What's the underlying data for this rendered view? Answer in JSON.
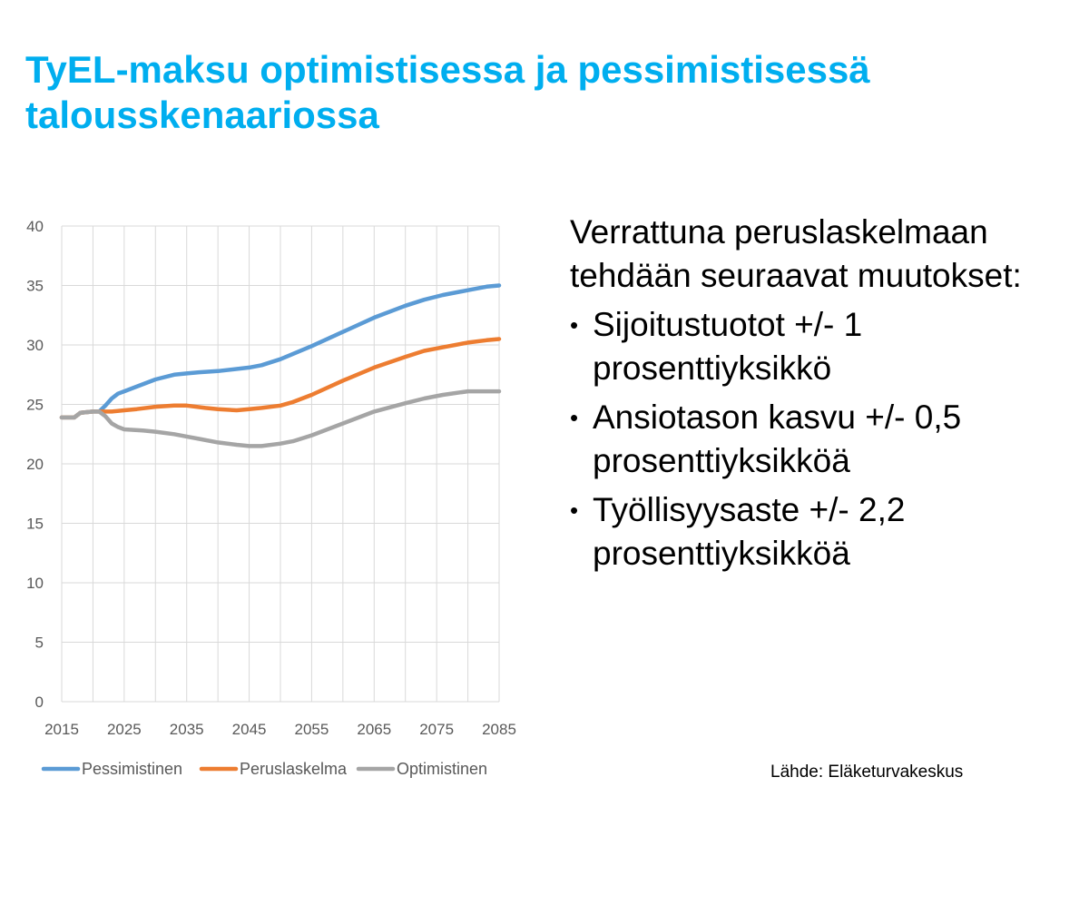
{
  "slide": {
    "title": "TyEL-maksu optimistisessa ja pessimistisessä talousskenaariossa",
    "intro": "Verrattuna peruslaskelmaan tehdään seuraavat muutokset:",
    "bullets": [
      "Sijoitustuotot +/- 1 prosenttiyksikkö",
      "Ansiotason kasvu +/- 0,5 prosenttiyksikköä",
      "Työllisyysaste +/- 2,2 prosenttiyksikköä"
    ],
    "source": "Lähde: Eläketurvakeskus"
  },
  "chart_data": {
    "type": "line",
    "title": "",
    "xlabel": "",
    "ylabel": "",
    "xlim": [
      2015,
      2085
    ],
    "ylim": [
      0,
      40
    ],
    "x_ticks": [
      "2015",
      "2025",
      "2035",
      "2045",
      "2055",
      "2065",
      "2075",
      "2085"
    ],
    "y_ticks": [
      "0",
      "5",
      "10",
      "15",
      "20",
      "25",
      "30",
      "35",
      "40"
    ],
    "grid": true,
    "legend_position": "bottom",
    "series": [
      {
        "name": "Pessimistinen",
        "color": "#5b9bd5",
        "x": [
          2015,
          2017,
          2018,
          2020,
          2021,
          2022,
          2023,
          2024,
          2025,
          2027,
          2030,
          2033,
          2035,
          2037,
          2040,
          2045,
          2047,
          2050,
          2055,
          2060,
          2065,
          2070,
          2073,
          2076,
          2080,
          2083,
          2085
        ],
        "values": [
          23.9,
          23.9,
          24.3,
          24.4,
          24.4,
          24.9,
          25.5,
          25.9,
          26.1,
          26.5,
          27.1,
          27.5,
          27.6,
          27.7,
          27.8,
          28.1,
          28.3,
          28.8,
          29.9,
          31.1,
          32.3,
          33.3,
          33.8,
          34.2,
          34.6,
          34.9,
          35.0
        ]
      },
      {
        "name": "Peruslaskelma",
        "color": "#ed7d31",
        "x": [
          2015,
          2017,
          2018,
          2020,
          2021,
          2023,
          2025,
          2027,
          2030,
          2033,
          2035,
          2038,
          2040,
          2043,
          2045,
          2047,
          2050,
          2052,
          2055,
          2060,
          2065,
          2070,
          2073,
          2076,
          2080,
          2083,
          2085
        ],
        "values": [
          23.9,
          23.9,
          24.3,
          24.4,
          24.4,
          24.4,
          24.5,
          24.6,
          24.8,
          24.9,
          24.9,
          24.7,
          24.6,
          24.5,
          24.6,
          24.7,
          24.9,
          25.2,
          25.8,
          27.0,
          28.1,
          29.0,
          29.5,
          29.8,
          30.2,
          30.4,
          30.5
        ]
      },
      {
        "name": "Optimistinen",
        "color": "#a5a5a5",
        "x": [
          2015,
          2017,
          2018,
          2020,
          2021,
          2022,
          2023,
          2024,
          2025,
          2028,
          2030,
          2033,
          2035,
          2037,
          2040,
          2043,
          2045,
          2047,
          2050,
          2052,
          2055,
          2060,
          2065,
          2070,
          2073,
          2076,
          2080,
          2083,
          2085
        ],
        "values": [
          23.9,
          23.9,
          24.3,
          24.4,
          24.4,
          24.0,
          23.4,
          23.1,
          22.9,
          22.8,
          22.7,
          22.5,
          22.3,
          22.1,
          21.8,
          21.6,
          21.5,
          21.5,
          21.7,
          21.9,
          22.4,
          23.4,
          24.4,
          25.1,
          25.5,
          25.8,
          26.1,
          26.1,
          26.1
        ]
      }
    ]
  }
}
